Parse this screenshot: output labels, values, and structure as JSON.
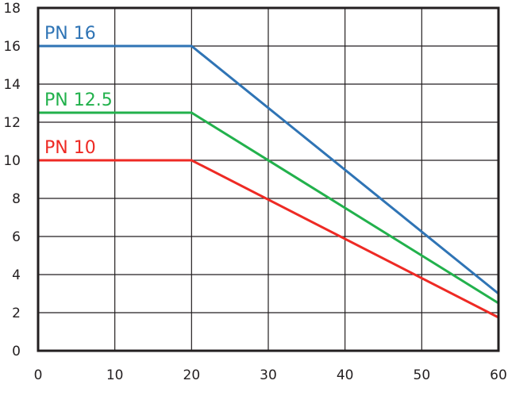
{
  "chart_data": {
    "type": "line",
    "title": "",
    "xlabel": "",
    "ylabel": "",
    "xlim": [
      0,
      60
    ],
    "ylim": [
      0,
      18
    ],
    "xticks": [
      0,
      10,
      20,
      30,
      40,
      50,
      60
    ],
    "yticks": [
      0,
      2,
      4,
      6,
      8,
      10,
      12,
      14,
      16,
      18
    ],
    "grid": true,
    "legend": "inline-labels-top-left",
    "series": [
      {
        "name": "PN 16",
        "color": "#2f74b5",
        "x": [
          0,
          20,
          60
        ],
        "y": [
          16,
          16,
          3
        ]
      },
      {
        "name": "PN 12.5",
        "color": "#22b14c",
        "x": [
          0,
          20,
          60
        ],
        "y": [
          12.5,
          12.5,
          2.5
        ]
      },
      {
        "name": "PN 10",
        "color": "#ee2a24",
        "x": [
          0,
          20,
          60
        ],
        "y": [
          10,
          10,
          1.75
        ]
      }
    ]
  }
}
